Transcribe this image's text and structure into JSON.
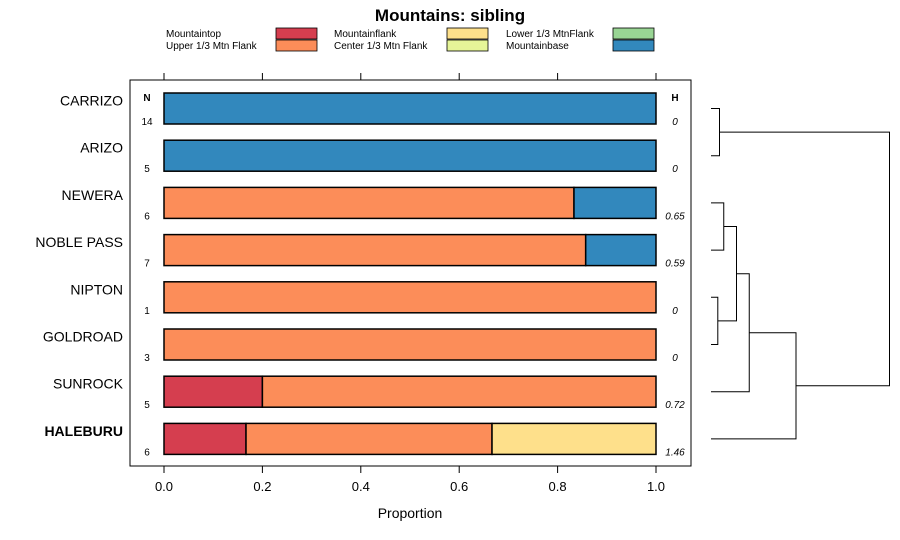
{
  "chart_data": {
    "type": "bar",
    "orientation": "horizontal-stacked",
    "title": "Mountains: sibling",
    "xlabel": "Proportion",
    "xlim": [
      0,
      1
    ],
    "xticks": [
      "0.0",
      "0.2",
      "0.4",
      "0.6",
      "0.8",
      "1.0"
    ],
    "n_header": "N",
    "h_header": "H",
    "categories": [
      "CARRIZO",
      "ARIZO",
      "NEWERA",
      "NOBLE PASS",
      "NIPTON",
      "GOLDROAD",
      "SUNROCK",
      "HALEBURU"
    ],
    "bold_category": "HALEBURU",
    "n": [
      "14",
      "5",
      "6",
      "7",
      "1",
      "3",
      "5",
      "6"
    ],
    "h": [
      "0",
      "0",
      "0.65",
      "0.59",
      "0",
      "0",
      "0.72",
      "1.46"
    ],
    "series": [
      {
        "name": "Mountaintop",
        "color": "#d53e4f",
        "values": [
          0,
          0,
          0,
          0,
          0,
          0,
          0.2,
          0.1667
        ]
      },
      {
        "name": "Upper 1/3 Mtn Flank",
        "color": "#fc8d59",
        "values": [
          0,
          0,
          0.8333,
          0.8571,
          1,
          1,
          0.8,
          0.5
        ]
      },
      {
        "name": "Mountainflank",
        "color": "#fee08b",
        "values": [
          0,
          0,
          0,
          0,
          0,
          0,
          0,
          0.3333
        ]
      },
      {
        "name": "Center 1/3 Mtn Flank",
        "color": "#e6f598",
        "values": [
          0,
          0,
          0,
          0,
          0,
          0,
          0,
          0
        ]
      },
      {
        "name": "Lower 1/3 MtnFlank",
        "color": "#99d594",
        "values": [
          0,
          0,
          0,
          0,
          0,
          0,
          0,
          0
        ]
      },
      {
        "name": "Mountainbase",
        "color": "#3288bd",
        "values": [
          1,
          1,
          0.1667,
          0.1429,
          0,
          0,
          0,
          0
        ]
      }
    ],
    "legend_position": "top",
    "dendrogram": {
      "merges": [
        {
          "a": "CARRIZO",
          "b": "ARIZO",
          "height": 0.1
        },
        {
          "a": "NEWERA",
          "b": "NOBLE PASS",
          "height": 0.15
        },
        {
          "a": "NIPTON",
          "b": "GOLDROAD",
          "height": 0.08
        },
        {
          "a": "m2",
          "b": "m3",
          "height": 0.3
        },
        {
          "a": "m4",
          "b": "SUNROCK",
          "height": 0.45
        },
        {
          "a": "m5",
          "b": "HALEBURU",
          "height": 1.0
        },
        {
          "a": "m1",
          "b": "m6",
          "height": 2.1
        }
      ]
    }
  }
}
